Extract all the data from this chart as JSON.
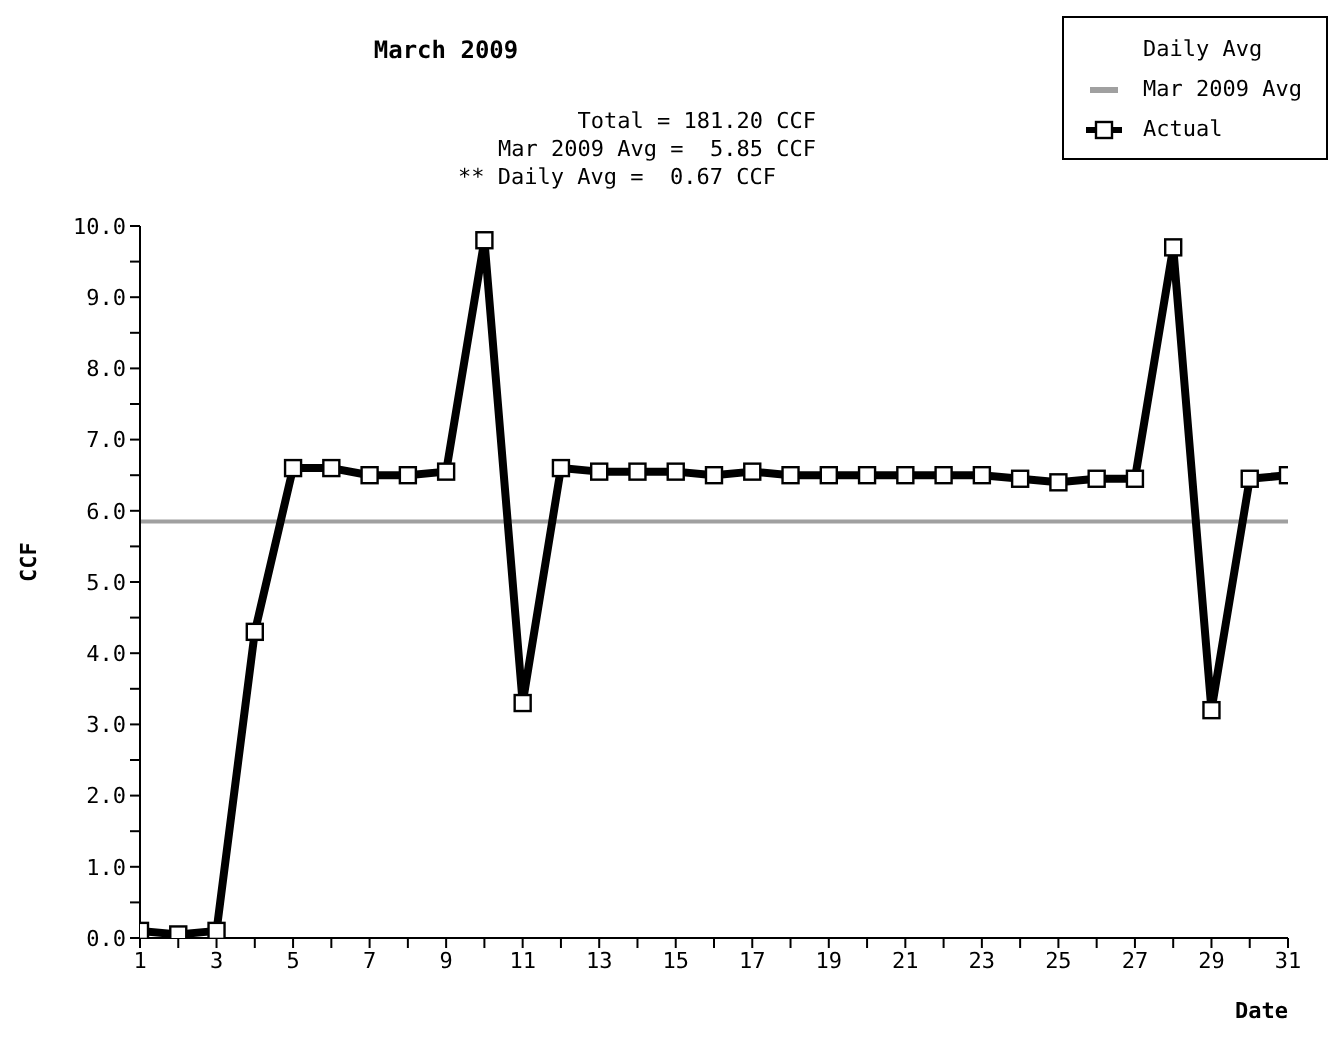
{
  "chart_data": {
    "type": "line",
    "title": "March 2009",
    "annotations": [
      "Total = 181.20 CCF",
      "Mar 2009 Avg =  5.85 CCF",
      "** Daily Avg =  0.67 CCF"
    ],
    "xlabel": "Date",
    "ylabel": "CCF",
    "legend_title": "Daily Avg",
    "x": [
      1,
      2,
      3,
      4,
      5,
      6,
      7,
      8,
      9,
      10,
      11,
      12,
      13,
      14,
      15,
      16,
      17,
      18,
      19,
      20,
      21,
      22,
      23,
      24,
      25,
      26,
      27,
      28,
      29,
      30,
      31
    ],
    "series": [
      {
        "name": "Actual",
        "color": "#000000",
        "values": [
          0.1,
          0.05,
          0.1,
          4.3,
          6.6,
          6.6,
          6.5,
          6.5,
          6.55,
          9.8,
          3.3,
          6.6,
          6.55,
          6.55,
          6.55,
          6.5,
          6.55,
          6.5,
          6.5,
          6.5,
          6.5,
          6.5,
          6.5,
          6.45,
          6.4,
          6.45,
          6.45,
          9.7,
          3.2,
          6.45,
          6.5
        ]
      }
    ],
    "ref_lines": [
      {
        "axis": "y",
        "value": 5.85,
        "label": "Mar 2009 Avg",
        "color": "#a0a0a0"
      }
    ],
    "xlim": [
      1,
      31
    ],
    "xticks": [
      1,
      {
        "value": 2,
        "label": null
      },
      3,
      {
        "value": 4,
        "label": null
      },
      5,
      {
        "value": 6,
        "label": null
      },
      7,
      {
        "value": 8,
        "label": null
      },
      9,
      {
        "value": 10,
        "label": null
      },
      11,
      {
        "value": 12,
        "label": null
      },
      13,
      {
        "value": 14,
        "label": null
      },
      15,
      {
        "value": 16,
        "label": null
      },
      17,
      {
        "value": 18,
        "label": null
      },
      19,
      {
        "value": 20,
        "label": null
      },
      21,
      {
        "value": 22,
        "label": null
      },
      23,
      {
        "value": 24,
        "label": null
      },
      25,
      {
        "value": 26,
        "label": null
      },
      27,
      {
        "value": 28,
        "label": null
      },
      29,
      {
        "value": 30,
        "label": null
      },
      31
    ],
    "ylim": [
      0,
      10
    ],
    "yticks": [
      {
        "value": 0,
        "label": "0.0"
      },
      {
        "value": 0.5,
        "label": null
      },
      {
        "value": 1,
        "label": "1.0"
      },
      {
        "value": 1.5,
        "label": null
      },
      {
        "value": 2,
        "label": "2.0"
      },
      {
        "value": 2.5,
        "label": null
      },
      {
        "value": 3,
        "label": "3.0"
      },
      {
        "value": 3.5,
        "label": null
      },
      {
        "value": 4,
        "label": "4.0"
      },
      {
        "value": 4.5,
        "label": null
      },
      {
        "value": 5,
        "label": "5.0"
      },
      {
        "value": 5.5,
        "label": null
      },
      {
        "value": 6,
        "label": "6.0"
      },
      {
        "value": 6.5,
        "label": null
      },
      {
        "value": 7,
        "label": "7.0"
      },
      {
        "value": 7.5,
        "label": null
      },
      {
        "value": 8,
        "label": "8.0"
      },
      {
        "value": 8.5,
        "label": null
      },
      {
        "value": 9,
        "label": "9.0"
      },
      {
        "value": 9.5,
        "label": null
      },
      {
        "value": 10,
        "label": "10.0"
      }
    ],
    "grid": false,
    "legend": "top right",
    "marker": "square",
    "line_style": "solid"
  }
}
